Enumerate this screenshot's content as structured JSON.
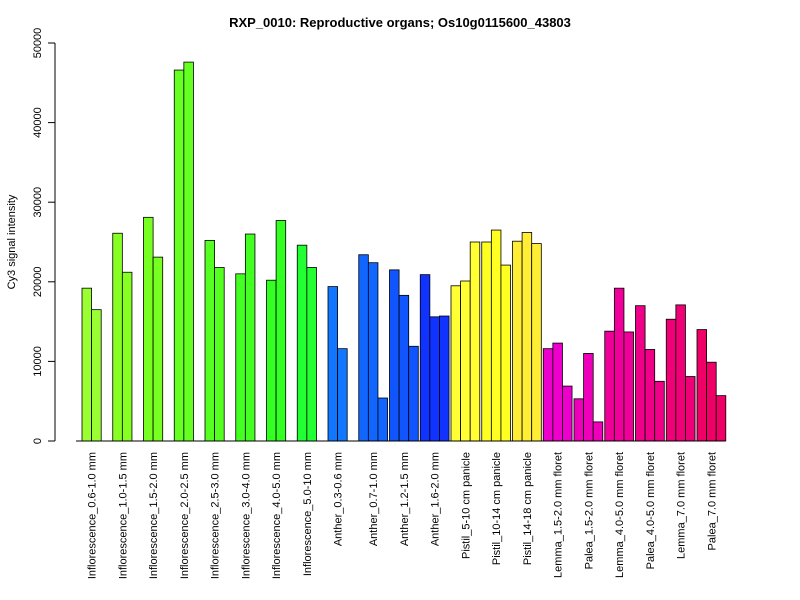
{
  "chart_data": {
    "type": "bar",
    "title": "RXP_0010: Reproductive organs; Os10g0115600_43803",
    "xlabel": "",
    "ylabel": "Cy3 signal intensity",
    "ylim": [
      0,
      50000
    ],
    "yticks": [
      "0",
      "10000",
      "20000",
      "30000",
      "40000",
      "50000"
    ],
    "grid": false,
    "legend": "none",
    "groups": [
      {
        "label": "Inflorescence_0.6-1.0 mm",
        "color": "#99ff33",
        "values": [
          19200,
          16500
        ]
      },
      {
        "label": "Inflorescence_1.0-1.5 mm",
        "color": "#88ff22",
        "values": [
          26100,
          21200
        ]
      },
      {
        "label": "Inflorescence_1.5-2.0 mm",
        "color": "#77ff22",
        "values": [
          28100,
          23100
        ]
      },
      {
        "label": "Inflorescence_2.0-2.5 mm",
        "color": "#66ff22",
        "values": [
          46600,
          47600
        ]
      },
      {
        "label": "Inflorescence_2.5-3.0 mm",
        "color": "#55ff22",
        "values": [
          25200,
          21800
        ]
      },
      {
        "label": "Inflorescence_3.0-4.0 mm",
        "color": "#44ff22",
        "values": [
          21000,
          26000
        ]
      },
      {
        "label": "Inflorescence_4.0-5.0 mm",
        "color": "#33ff22",
        "values": [
          20200,
          27700
        ]
      },
      {
        "label": "Inflorescence_5.0-10 mm",
        "color": "#22ff33",
        "values": [
          24600,
          21800
        ]
      },
      {
        "label": "Anther_0.3-0.6 mm",
        "color": "#1177ff",
        "values": [
          19400,
          11600
        ]
      },
      {
        "label": "Anther_0.7-1.0 mm",
        "color": "#1166ff",
        "values": [
          23400,
          22400,
          5400
        ]
      },
      {
        "label": "Anther_1.2-1.5 mm",
        "color": "#1155ff",
        "values": [
          21500,
          18300,
          11900
        ]
      },
      {
        "label": "Anther_1.6-2.0 mm",
        "color": "#1133ff",
        "values": [
          20900,
          15600,
          15700
        ]
      },
      {
        "label": "Pistil_5-10 cm panicle",
        "color": "#ffff33",
        "values": [
          19500,
          20100,
          25000
        ]
      },
      {
        "label": "Pistil_10-14 cm panicle",
        "color": "#ffff22",
        "values": [
          25000,
          26500,
          22100
        ]
      },
      {
        "label": "Pistil_14-18 cm panicle",
        "color": "#ffee33",
        "values": [
          25100,
          26200,
          24800
        ]
      },
      {
        "label": "Lemma_1.5-2.0 mm floret",
        "color": "#ee00cc",
        "values": [
          11600,
          12300,
          6900
        ]
      },
      {
        "label": "Palea_1.5-2.0 mm floret",
        "color": "#ee00bb",
        "values": [
          5300,
          11000,
          2400
        ]
      },
      {
        "label": "Lemma_4.0-5.0 mm floret",
        "color": "#ee0099",
        "values": [
          13800,
          19200,
          13700
        ]
      },
      {
        "label": "Palea_4.0-5.0 mm floret",
        "color": "#ee0088",
        "values": [
          17000,
          11500,
          7500
        ]
      },
      {
        "label": "Lemma_7.0 mm floret",
        "color": "#ee0077",
        "values": [
          15300,
          17100,
          8100
        ]
      },
      {
        "label": "Palea_7.0 mm floret",
        "color": "#ee0066",
        "values": [
          14000,
          9900,
          5700
        ]
      }
    ]
  }
}
